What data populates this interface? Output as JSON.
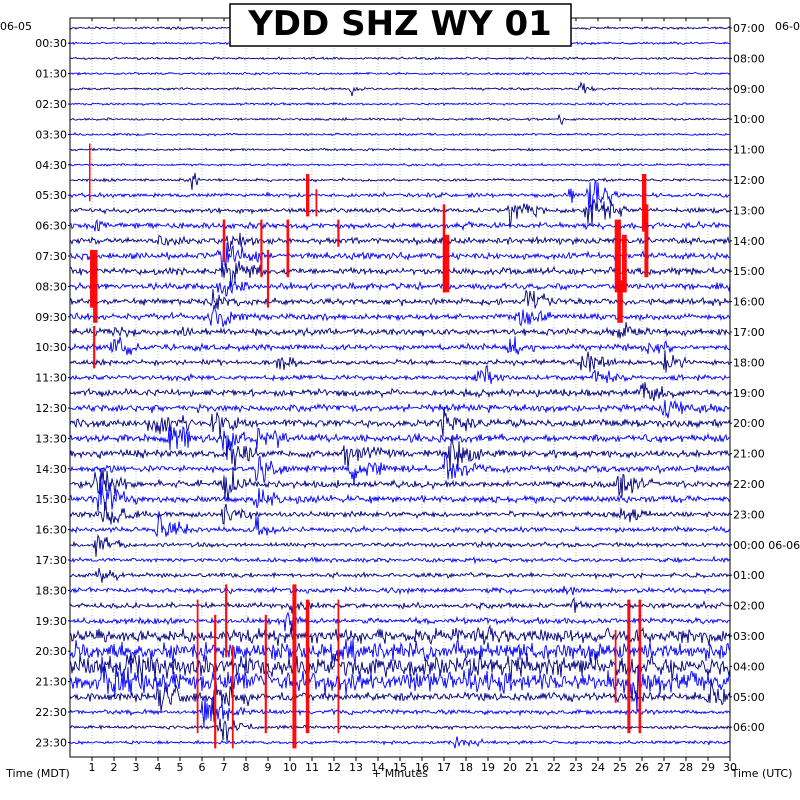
{
  "chart_data": {
    "type": "line",
    "title": "YDD SHZ WY 01",
    "xlabel": "+ Minutes",
    "left_axis_label": "Time (MDT)",
    "right_axis_label": "Time (UTC)",
    "left_date": "06-05",
    "right_date_top": "06-0",
    "right_date_change": "06-06",
    "xlim": [
      0,
      30
    ],
    "x_ticks": [
      1,
      2,
      3,
      4,
      5,
      6,
      7,
      8,
      9,
      10,
      11,
      12,
      13,
      14,
      15,
      16,
      17,
      18,
      19,
      20,
      21,
      22,
      23,
      24,
      25,
      26,
      27,
      28,
      29,
      30
    ],
    "x_tick_labels": [
      "1",
      "2",
      "3",
      "4",
      "5",
      "6",
      "7",
      "8",
      "9",
      "10",
      "11",
      "12",
      "13",
      "14",
      "15",
      "16",
      "17",
      "18",
      "19",
      "20",
      "21",
      "22",
      "23",
      "24",
      "25",
      "26",
      "27",
      "28",
      "29",
      "30"
    ],
    "rows_per_hour": 2,
    "row_count": 48,
    "left_time_labels": [
      "00:30",
      "01:30",
      "02:30",
      "03:30",
      "04:30",
      "05:30",
      "06:30",
      "07:30",
      "08:30",
      "09:30",
      "10:30",
      "11:30",
      "12:30",
      "13:30",
      "14:30",
      "15:30",
      "16:30",
      "17:30",
      "18:30",
      "19:30",
      "20:30",
      "21:30",
      "22:30",
      "23:30"
    ],
    "right_time_labels": [
      "07:00",
      "08:00",
      "09:00",
      "10:00",
      "11:00",
      "12:00",
      "13:00",
      "14:00",
      "15:00",
      "16:00",
      "17:00",
      "18:00",
      "19:00",
      "20:00",
      "21:00",
      "22:00",
      "23:00",
      "00:00 06-06",
      "01:00",
      "02:00",
      "03:00",
      "04:00",
      "05:00",
      "06:00"
    ],
    "trace_colors": [
      "#000080",
      "#0000ff"
    ],
    "clip_color": "#ff0000",
    "grid": true,
    "noise_level_by_row": [
      1,
      1,
      1,
      1,
      1,
      1,
      1,
      1,
      1,
      1,
      1.2,
      1.8,
      2,
      2.6,
      2.8,
      3,
      3,
      3,
      2.8,
      2.8,
      2.8,
      2.6,
      2.4,
      2.2,
      3,
      3.2,
      3.4,
      3.4,
      3.2,
      3,
      3,
      3,
      2.4,
      2.2,
      2,
      2,
      2,
      2.2,
      2.4,
      2.6,
      6,
      8,
      9,
      9,
      4,
      2,
      1.5,
      1.4
    ],
    "events": [
      {
        "row": 10,
        "minute": 5.6,
        "amp": 18,
        "dur": 0.3
      },
      {
        "row": 4,
        "minute": 12.8,
        "amp": 6,
        "dur": 0.6
      },
      {
        "row": 4,
        "minute": 23.2,
        "amp": 8,
        "dur": 0.8
      },
      {
        "row": 6,
        "minute": 22.3,
        "amp": 14,
        "dur": 0.3
      },
      {
        "row": 11,
        "minute": 22.8,
        "amp": 16,
        "dur": 0.4
      },
      {
        "row": 11,
        "minute": 23.6,
        "amp": 22,
        "dur": 1.4
      },
      {
        "row": 12,
        "minute": 20.0,
        "amp": 12,
        "dur": 2.0
      },
      {
        "row": 12,
        "minute": 23.5,
        "amp": 20,
        "dur": 1.8
      },
      {
        "row": 13,
        "minute": 1.2,
        "amp": 10,
        "dur": 0.6
      },
      {
        "row": 14,
        "minute": 7.2,
        "amp": 12,
        "dur": 1.5
      },
      {
        "row": 14,
        "minute": 4.0,
        "amp": 8,
        "dur": 1.0
      },
      {
        "row": 15,
        "minute": 6.8,
        "amp": 18,
        "dur": 2.0
      },
      {
        "row": 16,
        "minute": 7.0,
        "amp": 16,
        "dur": 1.8
      },
      {
        "row": 17,
        "minute": 6.8,
        "amp": 14,
        "dur": 1.5
      },
      {
        "row": 18,
        "minute": 20.8,
        "amp": 14,
        "dur": 1.5
      },
      {
        "row": 18,
        "minute": 6.5,
        "amp": 10,
        "dur": 1.2
      },
      {
        "row": 19,
        "minute": 6.5,
        "amp": 14,
        "dur": 1.8
      },
      {
        "row": 19,
        "minute": 20.5,
        "amp": 10,
        "dur": 1.5
      },
      {
        "row": 20,
        "minute": 2.0,
        "amp": 10,
        "dur": 1.0
      },
      {
        "row": 20,
        "minute": 5.0,
        "amp": 8,
        "dur": 1.2
      },
      {
        "row": 20,
        "minute": 25.0,
        "amp": 10,
        "dur": 1.5
      },
      {
        "row": 21,
        "minute": 2.0,
        "amp": 14,
        "dur": 1.2
      },
      {
        "row": 21,
        "minute": 20.0,
        "amp": 10,
        "dur": 1.2
      },
      {
        "row": 21,
        "minute": 26.3,
        "amp": 12,
        "dur": 1.2
      },
      {
        "row": 22,
        "minute": 9.5,
        "amp": 8,
        "dur": 1.2
      },
      {
        "row": 22,
        "minute": 23.3,
        "amp": 12,
        "dur": 1.5
      },
      {
        "row": 22,
        "minute": 27.0,
        "amp": 10,
        "dur": 1.2
      },
      {
        "row": 23,
        "minute": 18.5,
        "amp": 10,
        "dur": 1.5
      },
      {
        "row": 23,
        "minute": 23.8,
        "amp": 10,
        "dur": 1.5
      },
      {
        "row": 24,
        "minute": 26.0,
        "amp": 12,
        "dur": 1.5
      },
      {
        "row": 25,
        "minute": 27.0,
        "amp": 14,
        "dur": 2.0
      },
      {
        "row": 26,
        "minute": 3.5,
        "amp": 14,
        "dur": 2.0
      },
      {
        "row": 26,
        "minute": 6.5,
        "amp": 16,
        "dur": 1.5
      },
      {
        "row": 26,
        "minute": 17.0,
        "amp": 12,
        "dur": 1.5
      },
      {
        "row": 27,
        "minute": 4.5,
        "amp": 16,
        "dur": 2.0
      },
      {
        "row": 27,
        "minute": 8.5,
        "amp": 12,
        "dur": 1.5
      },
      {
        "row": 27,
        "minute": 7.0,
        "amp": 18,
        "dur": 1.2
      },
      {
        "row": 28,
        "minute": 7.2,
        "amp": 20,
        "dur": 1.5
      },
      {
        "row": 28,
        "minute": 12.5,
        "amp": 18,
        "dur": 1.8
      },
      {
        "row": 28,
        "minute": 17.3,
        "amp": 20,
        "dur": 1.5
      },
      {
        "row": 29,
        "minute": 12.8,
        "amp": 16,
        "dur": 1.5
      },
      {
        "row": 29,
        "minute": 8.5,
        "amp": 14,
        "dur": 1.5
      },
      {
        "row": 29,
        "minute": 17.0,
        "amp": 16,
        "dur": 1.8
      },
      {
        "row": 30,
        "minute": 1.2,
        "amp": 22,
        "dur": 1.5
      },
      {
        "row": 30,
        "minute": 7.0,
        "amp": 14,
        "dur": 1.5
      },
      {
        "row": 30,
        "minute": 25.0,
        "amp": 18,
        "dur": 1.5
      },
      {
        "row": 31,
        "minute": 1.3,
        "amp": 20,
        "dur": 1.8
      },
      {
        "row": 31,
        "minute": 8.5,
        "amp": 12,
        "dur": 1.5
      },
      {
        "row": 32,
        "minute": 1.5,
        "amp": 16,
        "dur": 2.0
      },
      {
        "row": 32,
        "minute": 7.0,
        "amp": 12,
        "dur": 1.5
      },
      {
        "row": 32,
        "minute": 25.0,
        "amp": 12,
        "dur": 1.5
      },
      {
        "row": 33,
        "minute": 4.0,
        "amp": 12,
        "dur": 1.8
      },
      {
        "row": 33,
        "minute": 8.5,
        "amp": 10,
        "dur": 1.5
      },
      {
        "row": 34,
        "minute": 1.2,
        "amp": 14,
        "dur": 1.5
      },
      {
        "row": 36,
        "minute": 1.2,
        "amp": 12,
        "dur": 1.0
      },
      {
        "row": 37,
        "minute": 22.5,
        "amp": 10,
        "dur": 1.0
      },
      {
        "row": 38,
        "minute": 10.0,
        "amp": 8,
        "dur": 1.0
      },
      {
        "row": 38,
        "minute": 22.8,
        "amp": 10,
        "dur": 1.0
      },
      {
        "row": 39,
        "minute": 9.8,
        "amp": 10,
        "dur": 1.0
      },
      {
        "row": 40,
        "minute": 18.5,
        "amp": 8,
        "dur": 1.5
      },
      {
        "row": 41,
        "minute": 12.0,
        "amp": 10,
        "dur": 1.5
      },
      {
        "row": 42,
        "minute": 2.5,
        "amp": 14,
        "dur": 2.0
      },
      {
        "row": 43,
        "minute": 1.5,
        "amp": 16,
        "dur": 2.5
      },
      {
        "row": 43,
        "minute": 25.5,
        "amp": 16,
        "dur": 1.5
      },
      {
        "row": 44,
        "minute": 4.0,
        "amp": 14,
        "dur": 2.0
      },
      {
        "row": 44,
        "minute": 6.5,
        "amp": 20,
        "dur": 2.0
      },
      {
        "row": 44,
        "minute": 29.0,
        "amp": 16,
        "dur": 1.0
      },
      {
        "row": 45,
        "minute": 6.0,
        "amp": 22,
        "dur": 2.0
      },
      {
        "row": 46,
        "minute": 6.8,
        "amp": 16,
        "dur": 1.5
      },
      {
        "row": 47,
        "minute": 17.5,
        "amp": 6,
        "dur": 1.5
      }
    ],
    "clipped_segments": [
      {
        "row_start": 8,
        "row_end": 11,
        "minute": 0.9,
        "width": 0.06
      },
      {
        "row_start": 10,
        "row_end": 12,
        "minute": 10.8,
        "width": 0.15
      },
      {
        "row_start": 11,
        "row_end": 12,
        "minute": 11.2,
        "width": 0.08
      },
      {
        "row_start": 10,
        "row_end": 13,
        "minute": 26.1,
        "width": 0.2
      },
      {
        "row_start": 12,
        "row_end": 16,
        "minute": 26.2,
        "width": 0.18
      },
      {
        "row_start": 12,
        "row_end": 17,
        "minute": 17.0,
        "width": 0.12
      },
      {
        "row_start": 13,
        "row_end": 15,
        "minute": 7.0,
        "width": 0.12
      },
      {
        "row_start": 13,
        "row_end": 16,
        "minute": 8.7,
        "width": 0.1
      },
      {
        "row_start": 13,
        "row_end": 16,
        "minute": 9.9,
        "width": 0.12
      },
      {
        "row_start": 13,
        "row_end": 14,
        "minute": 12.2,
        "width": 0.1
      },
      {
        "row_start": 13,
        "row_end": 17,
        "minute": 24.9,
        "width": 0.28
      },
      {
        "row_start": 14,
        "row_end": 17,
        "minute": 25.2,
        "width": 0.22
      },
      {
        "row_start": 14,
        "row_end": 17,
        "minute": 17.1,
        "width": 0.28
      },
      {
        "row_start": 15,
        "row_end": 18,
        "minute": 9.0,
        "width": 0.1
      },
      {
        "row_start": 15,
        "row_end": 18,
        "minute": 1.0,
        "width": 0.18
      },
      {
        "row_start": 15,
        "row_end": 19,
        "minute": 1.15,
        "width": 0.2
      },
      {
        "row_start": 17,
        "row_end": 19,
        "minute": 25.0,
        "width": 0.25
      },
      {
        "row_start": 20,
        "row_end": 22,
        "minute": 1.1,
        "width": 0.1
      },
      {
        "row_start": 37,
        "row_end": 41,
        "minute": 7.1,
        "width": 0.1
      },
      {
        "row_start": 37,
        "row_end": 47,
        "minute": 10.2,
        "width": 0.18
      },
      {
        "row_start": 38,
        "row_end": 46,
        "minute": 10.8,
        "width": 0.16
      },
      {
        "row_start": 38,
        "row_end": 46,
        "minute": 12.2,
        "width": 0.08
      },
      {
        "row_start": 39,
        "row_end": 46,
        "minute": 8.9,
        "width": 0.1
      },
      {
        "row_start": 38,
        "row_end": 46,
        "minute": 5.8,
        "width": 0.08
      },
      {
        "row_start": 39,
        "row_end": 47,
        "minute": 6.6,
        "width": 0.1
      },
      {
        "row_start": 38,
        "row_end": 46,
        "minute": 25.4,
        "width": 0.14
      },
      {
        "row_start": 38,
        "row_end": 46,
        "minute": 25.9,
        "width": 0.12
      },
      {
        "row_start": 40,
        "row_end": 44,
        "minute": 24.8,
        "width": 0.08
      },
      {
        "row_start": 41,
        "row_end": 47,
        "minute": 7.4,
        "width": 0.08
      }
    ]
  }
}
